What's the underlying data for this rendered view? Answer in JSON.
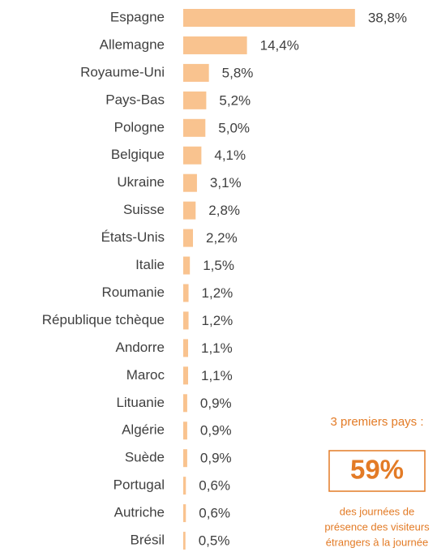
{
  "chart_data": {
    "type": "bar",
    "orientation": "horizontal",
    "color": "#f9c38f",
    "categories": [
      "Espagne",
      "Allemagne",
      "Royaume-Uni",
      "Pays-Bas",
      "Pologne",
      "Belgique",
      "Ukraine",
      "Suisse",
      "États-Unis",
      "Italie",
      "Roumanie",
      "République tchèque",
      "Andorre",
      "Maroc",
      "Lituanie",
      "Algérie",
      "Suède",
      "Portugal",
      "Autriche",
      "Brésil"
    ],
    "values": [
      38.8,
      14.4,
      5.8,
      5.2,
      5.0,
      4.1,
      3.1,
      2.8,
      2.2,
      1.5,
      1.2,
      1.2,
      1.1,
      1.1,
      0.9,
      0.9,
      0.9,
      0.6,
      0.6,
      0.5
    ],
    "value_labels": [
      "38,8%",
      "14,4%",
      "5,8%",
      "5,2%",
      "5,0%",
      "4,1%",
      "3,1%",
      "2,8%",
      "2,2%",
      "1,5%",
      "1,2%",
      "1,2%",
      "1,1%",
      "1,1%",
      "0,9%",
      "0,9%",
      "0,9%",
      "0,6%",
      "0,6%",
      "0,5%"
    ],
    "annotation": {
      "heading": "3 premiers pays :",
      "value": "59%",
      "lines": [
        "des journées de",
        "présence des visiteurs",
        "étrangers à la journée"
      ]
    }
  }
}
